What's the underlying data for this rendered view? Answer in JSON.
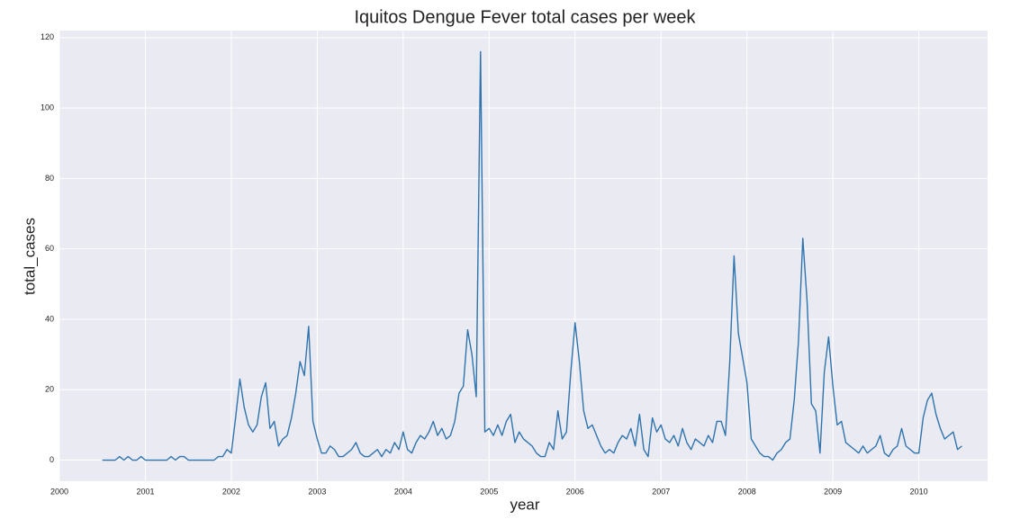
{
  "chart_data": {
    "type": "line",
    "title": "Iquitos Dengue Fever total cases per week",
    "xlabel": "year",
    "ylabel": "total_cases",
    "color": "#2f74ad",
    "grid": true,
    "xlim": [
      2000,
      2010.8
    ],
    "ylim": [
      -6,
      122
    ],
    "xticks": [
      2000,
      2001,
      2002,
      2003,
      2004,
      2005,
      2006,
      2007,
      2008,
      2009,
      2010
    ],
    "yticks": [
      0,
      20,
      40,
      60,
      80,
      100,
      120
    ],
    "x": [
      2000.5,
      2000.55,
      2000.6,
      2000.65,
      2000.7,
      2000.75,
      2000.8,
      2000.85,
      2000.9,
      2000.95,
      2001,
      2001.05,
      2001.1,
      2001.15,
      2001.2,
      2001.25,
      2001.3,
      2001.35,
      2001.4,
      2001.45,
      2001.5,
      2001.55,
      2001.6,
      2001.65,
      2001.7,
      2001.75,
      2001.8,
      2001.85,
      2001.9,
      2001.95,
      2002,
      2002.05,
      2002.1,
      2002.15,
      2002.2,
      2002.25,
      2002.3,
      2002.35,
      2002.4,
      2002.45,
      2002.5,
      2002.55,
      2002.6,
      2002.65,
      2002.7,
      2002.75,
      2002.8,
      2002.85,
      2002.9,
      2002.95,
      2003,
      2003.05,
      2003.1,
      2003.15,
      2003.2,
      2003.25,
      2003.3,
      2003.35,
      2003.4,
      2003.45,
      2003.5,
      2003.55,
      2003.6,
      2003.65,
      2003.7,
      2003.75,
      2003.8,
      2003.85,
      2003.9,
      2003.95,
      2004,
      2004.05,
      2004.1,
      2004.15,
      2004.2,
      2004.25,
      2004.3,
      2004.35,
      2004.4,
      2004.45,
      2004.5,
      2004.55,
      2004.6,
      2004.65,
      2004.7,
      2004.75,
      2004.8,
      2004.85,
      2004.9,
      2004.95,
      2005,
      2005.05,
      2005.1,
      2005.15,
      2005.2,
      2005.25,
      2005.3,
      2005.35,
      2005.4,
      2005.45,
      2005.5,
      2005.55,
      2005.6,
      2005.65,
      2005.7,
      2005.75,
      2005.8,
      2005.85,
      2005.9,
      2005.95,
      2006,
      2006.05,
      2006.1,
      2006.15,
      2006.2,
      2006.25,
      2006.3,
      2006.35,
      2006.4,
      2006.45,
      2006.5,
      2006.55,
      2006.6,
      2006.65,
      2006.7,
      2006.75,
      2006.8,
      2006.85,
      2006.9,
      2006.95,
      2007,
      2007.05,
      2007.1,
      2007.15,
      2007.2,
      2007.25,
      2007.3,
      2007.35,
      2007.4,
      2007.45,
      2007.5,
      2007.55,
      2007.6,
      2007.65,
      2007.7,
      2007.75,
      2007.8,
      2007.85,
      2007.9,
      2007.95,
      2008,
      2008.05,
      2008.1,
      2008.15,
      2008.2,
      2008.25,
      2008.3,
      2008.35,
      2008.4,
      2008.45,
      2008.5,
      2008.55,
      2008.6,
      2008.65,
      2008.7,
      2008.75,
      2008.8,
      2008.85,
      2008.9,
      2008.95,
      2009,
      2009.05,
      2009.1,
      2009.15,
      2009.2,
      2009.25,
      2009.3,
      2009.35,
      2009.4,
      2009.45,
      2009.5,
      2009.55,
      2009.6,
      2009.65,
      2009.7,
      2009.75,
      2009.8,
      2009.85,
      2009.9,
      2009.95,
      2010,
      2010.05,
      2010.1,
      2010.15,
      2010.2,
      2010.25,
      2010.3,
      2010.35,
      2010.4,
      2010.45,
      2010.5
    ],
    "values": [
      0,
      0,
      0,
      0,
      1,
      0,
      1,
      0,
      0,
      1,
      0,
      0,
      0,
      0,
      0,
      0,
      1,
      0,
      1,
      1,
      0,
      0,
      0,
      0,
      0,
      0,
      0,
      1,
      1,
      3,
      2,
      12,
      23,
      15,
      10,
      8,
      10,
      18,
      22,
      9,
      11,
      4,
      6,
      7,
      12,
      19,
      28,
      24,
      38,
      11,
      6,
      2,
      2,
      4,
      3,
      1,
      1,
      2,
      3,
      5,
      2,
      1,
      1,
      2,
      3,
      1,
      3,
      2,
      5,
      3,
      8,
      3,
      2,
      5,
      7,
      6,
      8,
      11,
      7,
      9,
      6,
      7,
      11,
      19,
      21,
      37,
      30,
      18,
      116,
      8,
      9,
      7,
      10,
      7,
      11,
      13,
      5,
      8,
      6,
      5,
      4,
      2,
      1,
      1,
      5,
      3,
      14,
      6,
      8,
      25,
      39,
      28,
      14,
      9,
      10,
      7,
      4,
      2,
      3,
      2,
      5,
      7,
      6,
      9,
      4,
      13,
      3,
      1,
      12,
      8,
      10,
      6,
      5,
      7,
      4,
      9,
      5,
      3,
      6,
      5,
      4,
      7,
      5,
      11,
      11,
      7,
      28,
      58,
      36,
      29,
      22,
      6,
      4,
      2,
      1,
      1,
      0,
      2,
      3,
      5,
      6,
      17,
      34,
      63,
      45,
      16,
      14,
      2,
      25,
      35,
      21,
      10,
      11,
      5,
      4,
      3,
      2,
      4,
      2,
      3,
      4,
      7,
      2,
      1,
      3,
      4,
      9,
      4,
      3,
      2,
      2,
      12,
      17,
      19,
      13,
      9,
      6,
      7,
      8,
      3,
      4
    ]
  }
}
